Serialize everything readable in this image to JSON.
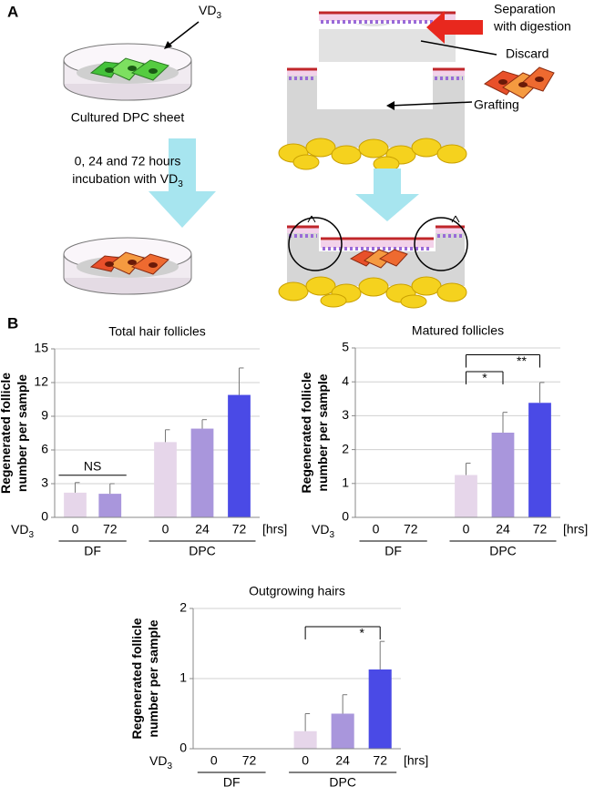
{
  "panel_labels": [
    "A",
    "B"
  ],
  "diagram": {
    "vd_label": {
      "text": "VD",
      "sub": "3"
    },
    "dish_label": "Cultured DPC sheet",
    "incubation": {
      "line1": "0, 24 and 72 hours",
      "line2": "incubation with VD",
      "sub": "3"
    },
    "separation": {
      "line1": "Separation",
      "line2": "with digestion"
    },
    "discard": "Discard",
    "grafting": "Grafting"
  },
  "chart_data": [
    {
      "type": "bar",
      "title": "Total hair follicles",
      "ylabel": [
        "Regenerated follicle",
        "number  per sample"
      ],
      "x_prefix": {
        "text": "VD",
        "sub": "3"
      },
      "x_unit": "[hrs]",
      "categories": [
        "0",
        "72",
        "0",
        "24",
        "72"
      ],
      "groups": [
        "DF",
        "DPC"
      ],
      "values": [
        2.2,
        2.1,
        6.7,
        7.9,
        10.9
      ],
      "errors": [
        0.9,
        0.9,
        1.1,
        0.8,
        2.4
      ],
      "colors": [
        "#e6d6ea",
        "#a996dc",
        "#e6d6ea",
        "#a996dc",
        "#4a4ae6"
      ],
      "ylim": [
        0,
        15
      ],
      "yticks": [
        0,
        3,
        6,
        9,
        12,
        15
      ],
      "grid": true,
      "annotations": [
        "NS"
      ]
    },
    {
      "type": "bar",
      "title": "Matured follicles",
      "ylabel": [
        "Regenerated follicle",
        "number  per sample"
      ],
      "x_prefix": {
        "text": "VD",
        "sub": "3"
      },
      "x_unit": "[hrs]",
      "categories": [
        "0",
        "72",
        "0",
        "24",
        "72"
      ],
      "groups": [
        "DF",
        "DPC"
      ],
      "values": [
        0,
        0,
        1.25,
        2.5,
        3.38
      ],
      "errors": [
        null,
        null,
        0.35,
        0.6,
        0.6
      ],
      "colors": [
        "#e6d6ea",
        "#a996dc",
        "#e6d6ea",
        "#a996dc",
        "#4a4ae6"
      ],
      "ylim": [
        0,
        5
      ],
      "yticks": [
        0,
        1,
        2,
        3,
        4,
        5
      ],
      "grid": true,
      "annotations": [
        "*",
        "**"
      ]
    },
    {
      "type": "bar",
      "title": "Outgrowing hairs",
      "ylabel": [
        "Regenerated follicle",
        "number  per sample"
      ],
      "x_prefix": {
        "text": "VD",
        "sub": "3"
      },
      "x_unit": "[hrs]",
      "categories": [
        "0",
        "72",
        "0",
        "24",
        "72"
      ],
      "groups": [
        "DF",
        "DPC"
      ],
      "values": [
        0,
        0,
        0.25,
        0.5,
        1.13
      ],
      "errors": [
        null,
        null,
        0.25,
        0.27,
        0.4
      ],
      "colors": [
        "#e6d6ea",
        "#a996dc",
        "#e6d6ea",
        "#a996dc",
        "#4a4ae6"
      ],
      "ylim": [
        0,
        2
      ],
      "yticks": [
        0,
        1,
        2
      ],
      "grid": true,
      "annotations": [
        "*"
      ]
    }
  ]
}
